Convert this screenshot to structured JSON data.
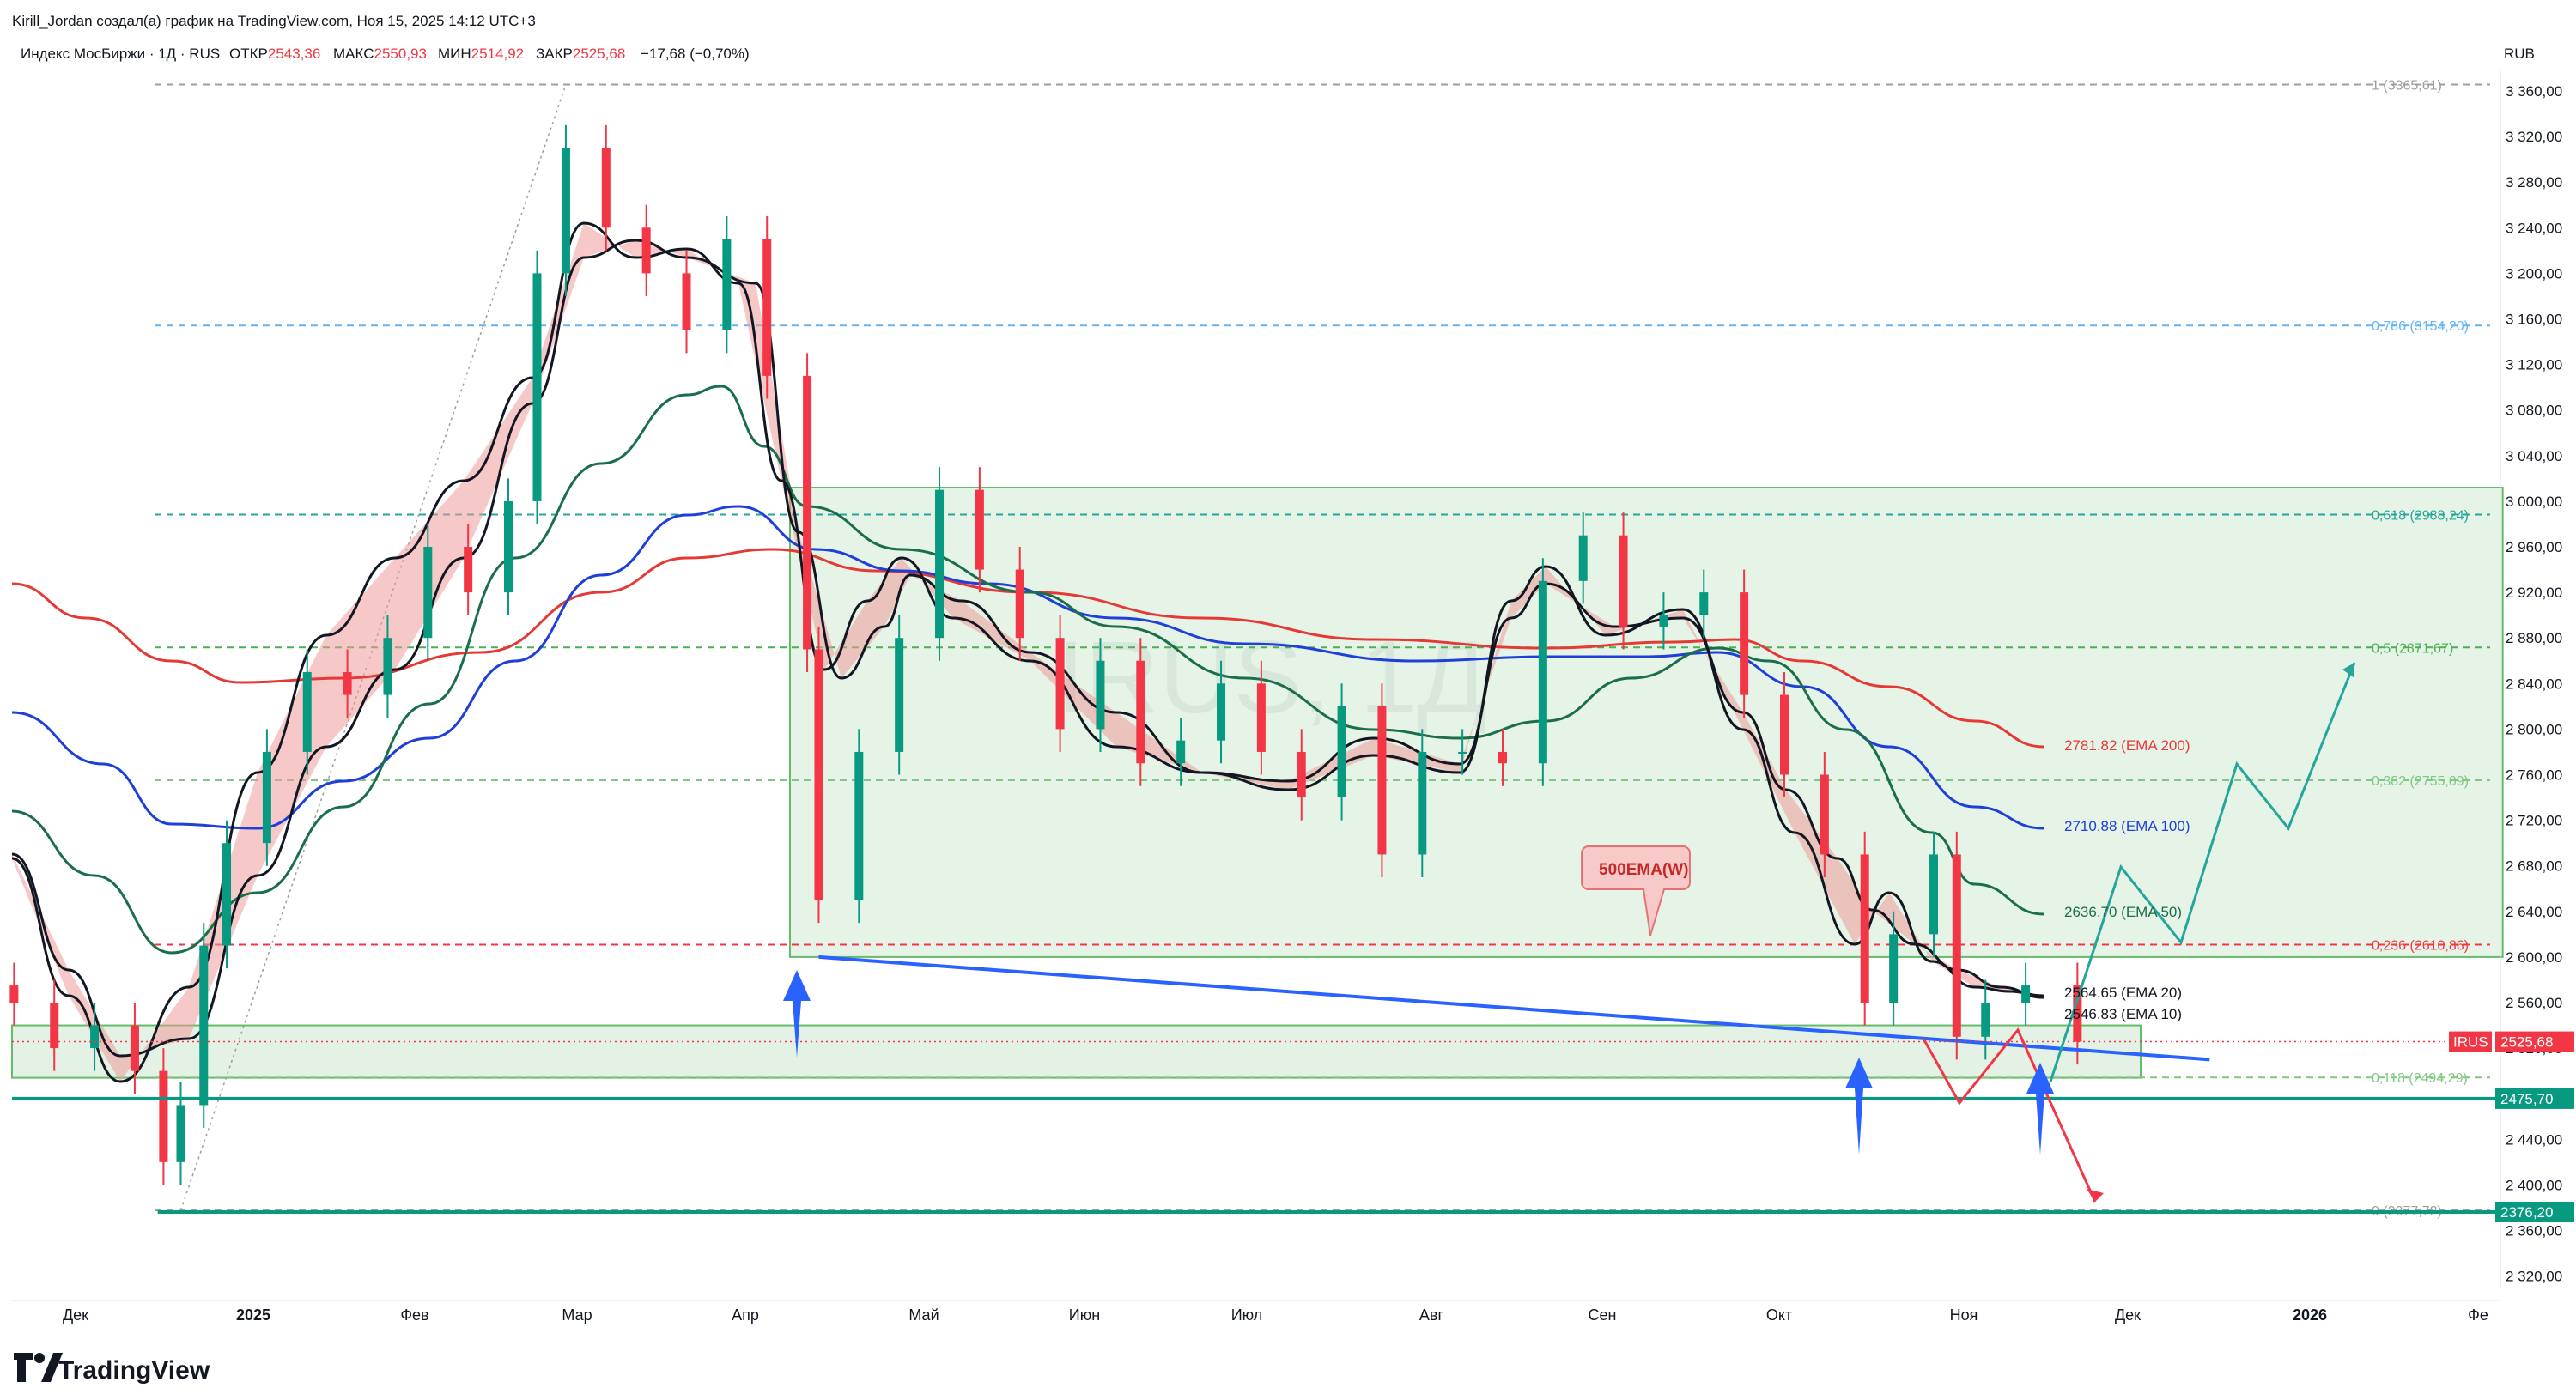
{
  "header": {
    "author_line": "Kirill_Jordan создал(а) график на TradingView.com, Ноя 15, 2025 14:12 UTC+3",
    "symbol": "Индекс МосБиржи · 1Д · RUS",
    "open_label": "ОТКР",
    "open_value": "2543,36",
    "high_label": "МАКС",
    "high_value": "2550,93",
    "low_label": "МИН",
    "low_value": "2514,92",
    "close_label": "ЗАКР",
    "close_value": "2525,68",
    "change": "−17,68 (−0,70%)",
    "currency": "RUB"
  },
  "watermark": "IRUS, 1Д",
  "logo": "TradingView",
  "price_axis": {
    "ticks": [
      "3 360,00",
      "3 320,00",
      "3 280,00",
      "3 240,00",
      "3 200,00",
      "3 160,00",
      "3 120,00",
      "3 080,00",
      "3 040,00",
      "3 000,00",
      "2 960,00",
      "2 920,00",
      "2 880,00",
      "2 840,00",
      "2 800,00",
      "2 760,00",
      "2 720,00",
      "2 680,00",
      "2 640,00",
      "2 600,00",
      "2 560,00",
      "2 520,00",
      "2 480,00",
      "2 440,00",
      "2 400,00",
      "2 360,00",
      "2 320,00"
    ]
  },
  "time_axis": [
    {
      "label": "Дек",
      "bold": false
    },
    {
      "label": "2025",
      "bold": true
    },
    {
      "label": "Фев",
      "bold": false
    },
    {
      "label": "Мар",
      "bold": false
    },
    {
      "label": "Апр",
      "bold": false
    },
    {
      "label": "Май",
      "bold": false
    },
    {
      "label": "Июн",
      "bold": false
    },
    {
      "label": "Июл",
      "bold": false
    },
    {
      "label": "Авг",
      "bold": false
    },
    {
      "label": "Сен",
      "bold": false
    },
    {
      "label": "Окт",
      "bold": false
    },
    {
      "label": "Ноя",
      "bold": false
    },
    {
      "label": "Дек",
      "bold": false
    },
    {
      "label": "2026",
      "bold": true
    },
    {
      "label": "Фе",
      "bold": false
    }
  ],
  "fib_levels": [
    {
      "label": "1 (3365,61)",
      "price": 3365.61,
      "color": "#9e9e9e"
    },
    {
      "label": "0,786 (3154,20)",
      "price": 3154.2,
      "color": "#64b5f6"
    },
    {
      "label": "0,618 (2988,24)",
      "price": 2988.24,
      "color": "#26a69a"
    },
    {
      "label": "0,5 (2871,67)",
      "price": 2871.67,
      "color": "#4caf50"
    },
    {
      "label": "0,382 (2755,09)",
      "price": 2755.09,
      "color": "#81c784"
    },
    {
      "label": "0,236 (2610,86)",
      "price": 2610.86,
      "color": "#f23645"
    },
    {
      "label": "0,118 (2494,29)",
      "price": 2494.29,
      "color": "#81c784"
    },
    {
      "label": "0 (2377,72)",
      "price": 2377.72,
      "color": "#9e9e9e"
    }
  ],
  "ema_labels": [
    {
      "label": "2781.82 (EMA 200)",
      "price": 2781.82,
      "color": "#e53935"
    },
    {
      "label": "2710.88 (EMA 100)",
      "price": 2710.88,
      "color": "#1e3fd8"
    },
    {
      "label": "2636.70 (EMA 50)",
      "price": 2636.7,
      "color": "#1b6e4b"
    },
    {
      "label": "2564.65 (EMA 20)",
      "price": 2564.65,
      "color": "#131722"
    },
    {
      "label": "2546.83 (EMA 10)",
      "price": 2546.83,
      "color": "#131722"
    }
  ],
  "price_tags": [
    {
      "name": "IRUS",
      "value": "2525,68",
      "price": 2525.68,
      "color": "#f23645"
    },
    {
      "value": "2475,70",
      "price": 2475.7,
      "color": "#089981"
    },
    {
      "value": "2376,20",
      "price": 2376.2,
      "color": "#089981"
    }
  ],
  "callout": {
    "text": "500EMA(W)"
  },
  "colors": {
    "up": "#089981",
    "down": "#f23645",
    "ema10": "#131722",
    "ema20": "#131722",
    "ema50": "#1b6e4b",
    "ema100": "#1e3fd8",
    "ema200": "#e53935",
    "zone": "#c8e6c9",
    "trendline": "#2962ff",
    "arrow": "#2962ff"
  },
  "chart_data": {
    "type": "candlestick",
    "title": "Индекс МосБиржи · 1Д · RUS",
    "ylabel": "RUB",
    "ylim": [
      2300,
      3380
    ],
    "x_range": [
      "2024-11-18",
      "2026-02-01"
    ],
    "series": [
      {
        "name": "IRUS",
        "values": [
          [
            "2024-11-20",
            2560
          ],
          [
            "2024-11-27",
            2520
          ],
          [
            "2024-12-04",
            2540
          ],
          [
            "2024-12-11",
            2500
          ],
          [
            "2024-12-16",
            2420
          ],
          [
            "2024-12-19",
            2470
          ],
          [
            "2024-12-23",
            2610
          ],
          [
            "2024-12-27",
            2700
          ],
          [
            "2025-01-03",
            2780
          ],
          [
            "2025-01-10",
            2850
          ],
          [
            "2025-01-17",
            2830
          ],
          [
            "2025-01-24",
            2880
          ],
          [
            "2025-01-31",
            2960
          ],
          [
            "2025-02-07",
            2920
          ],
          [
            "2025-02-14",
            3000
          ],
          [
            "2025-02-19",
            3200
          ],
          [
            "2025-02-24",
            3310
          ],
          [
            "2025-03-03",
            3240
          ],
          [
            "2025-03-10",
            3200
          ],
          [
            "2025-03-17",
            3150
          ],
          [
            "2025-03-24",
            3230
          ],
          [
            "2025-03-31",
            3110
          ],
          [
            "2025-04-07",
            2870
          ],
          [
            "2025-04-09",
            2650
          ],
          [
            "2025-04-16",
            2780
          ],
          [
            "2025-04-23",
            2880
          ],
          [
            "2025-04-30",
            3010
          ],
          [
            "2025-05-07",
            2940
          ],
          [
            "2025-05-14",
            2880
          ],
          [
            "2025-05-21",
            2800
          ],
          [
            "2025-05-28",
            2860
          ],
          [
            "2025-06-04",
            2770
          ],
          [
            "2025-06-11",
            2790
          ],
          [
            "2025-06-18",
            2840
          ],
          [
            "2025-06-25",
            2780
          ],
          [
            "2025-07-02",
            2740
          ],
          [
            "2025-07-09",
            2820
          ],
          [
            "2025-07-16",
            2690
          ],
          [
            "2025-07-23",
            2780
          ],
          [
            "2025-07-30",
            2780
          ],
          [
            "2025-08-06",
            2770
          ],
          [
            "2025-08-13",
            2930
          ],
          [
            "2025-08-20",
            2970
          ],
          [
            "2025-08-27",
            2890
          ],
          [
            "2025-09-03",
            2900
          ],
          [
            "2025-09-10",
            2920
          ],
          [
            "2025-09-17",
            2830
          ],
          [
            "2025-09-24",
            2760
          ],
          [
            "2025-10-01",
            2690
          ],
          [
            "2025-10-08",
            2560
          ],
          [
            "2025-10-13",
            2620
          ],
          [
            "2025-10-20",
            2690
          ],
          [
            "2025-10-24",
            2530
          ],
          [
            "2025-10-29",
            2560
          ],
          [
            "2025-11-05",
            2575
          ],
          [
            "2025-11-14",
            2525.68
          ]
        ]
      },
      {
        "name": "EMA 200",
        "values": [
          [
            "2024-11-18",
            2910
          ],
          [
            "2025-01-01",
            2840
          ],
          [
            "2025-04-01",
            2960
          ],
          [
            "2025-08-01",
            2880
          ],
          [
            "2025-11-14",
            2781.82
          ]
        ]
      },
      {
        "name": "EMA 100",
        "values": [
          [
            "2024-11-18",
            2810
          ],
          [
            "2025-01-01",
            2720
          ],
          [
            "2025-04-01",
            2990
          ],
          [
            "2025-08-01",
            2860
          ],
          [
            "2025-11-14",
            2710.88
          ]
        ]
      },
      {
        "name": "EMA 50",
        "values": [
          [
            "2024-11-18",
            2730
          ],
          [
            "2024-12-20",
            2600
          ],
          [
            "2025-03-25",
            3100
          ],
          [
            "2025-05-01",
            2940
          ],
          [
            "2025-08-01",
            2830
          ],
          [
            "2025-11-14",
            2636.7
          ]
        ]
      },
      {
        "name": "EMA 20",
        "values": [
          [
            "2025-11-14",
            2564.65
          ]
        ]
      },
      {
        "name": "EMA 10",
        "values": [
          [
            "2025-11-14",
            2546.83
          ]
        ]
      }
    ],
    "annotations": [
      "500EMA(W)"
    ]
  }
}
